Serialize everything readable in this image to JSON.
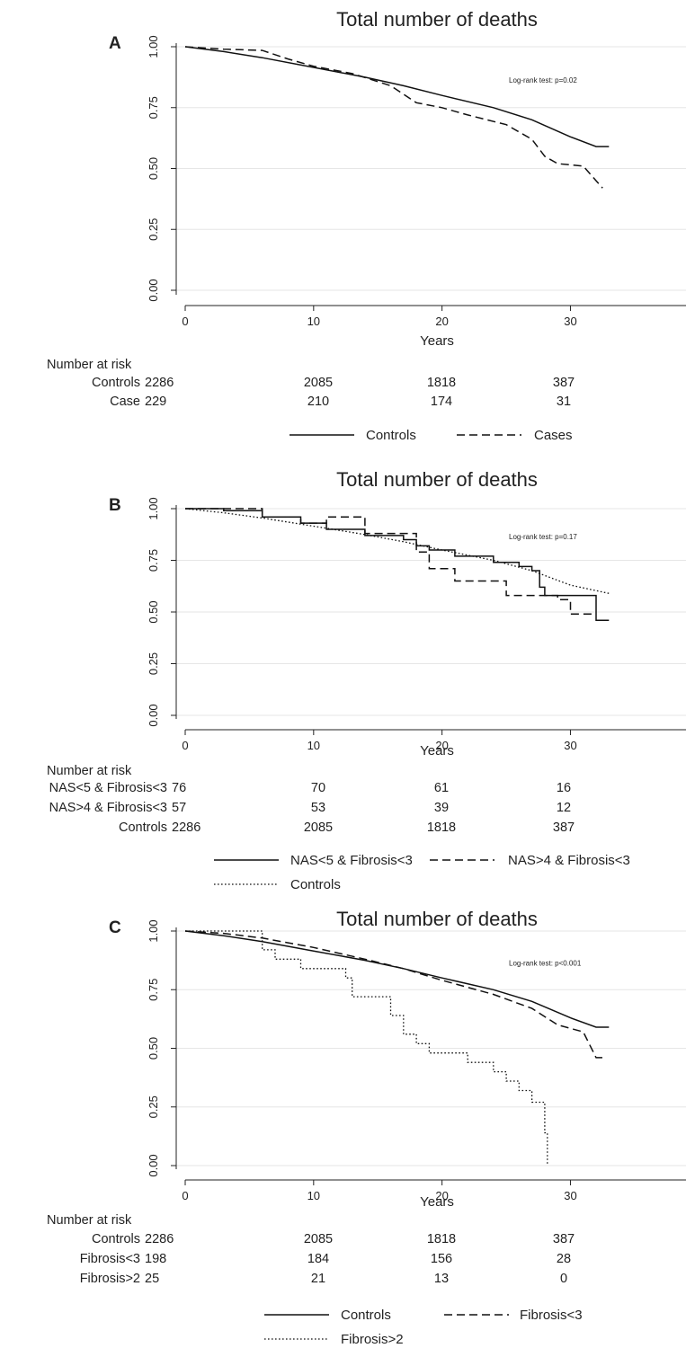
{
  "chart_data": [
    {
      "type": "line",
      "panel": "A",
      "title": "Total number of deaths",
      "xlabel": "Years",
      "xlim": [
        0,
        39
      ],
      "ylim": [
        0,
        1.05
      ],
      "xticks": [
        "0",
        "10",
        "20",
        "30"
      ],
      "yticks": [
        "0.00",
        "0.25",
        "0.50",
        "0.75",
        "1.00"
      ],
      "grid": true,
      "annotation": "Log-rank test: p=0.02",
      "series": [
        {
          "name": "Controls",
          "style": "solid",
          "step": false,
          "x": [
            0,
            3,
            6,
            10,
            14,
            17,
            20,
            24,
            27,
            30,
            32,
            33
          ],
          "y": [
            1.0,
            0.98,
            0.955,
            0.915,
            0.875,
            0.84,
            0.8,
            0.75,
            0.7,
            0.63,
            0.59,
            0.59
          ]
        },
        {
          "name": "Cases",
          "style": "dashed",
          "step": false,
          "x": [
            0,
            3,
            6,
            8,
            10,
            13,
            16,
            18,
            20,
            22,
            25,
            27,
            28,
            29,
            31,
            32,
            32.5
          ],
          "y": [
            1.0,
            0.99,
            0.985,
            0.95,
            0.92,
            0.89,
            0.84,
            0.77,
            0.75,
            0.72,
            0.68,
            0.62,
            0.55,
            0.52,
            0.51,
            0.45,
            0.42
          ]
        }
      ],
      "risk_table": {
        "title": "Number at risk",
        "rows": [
          {
            "label": "Controls",
            "values": [
              "2286",
              "2085",
              "1818",
              "387"
            ]
          },
          {
            "label": "Case",
            "values": [
              "229",
              "210",
              "174",
              "31"
            ]
          }
        ]
      },
      "legend": [
        "Controls",
        "Cases"
      ]
    },
    {
      "type": "line",
      "panel": "B",
      "title": "Total number of deaths",
      "xlabel": "Years",
      "xlim": [
        0,
        39
      ],
      "ylim": [
        0,
        1.05
      ],
      "xticks": [
        "0",
        "10",
        "20",
        "30"
      ],
      "yticks": [
        "0.00",
        "0.25",
        "0.50",
        "0.75",
        "1.00"
      ],
      "grid": true,
      "annotation": "Log-rank test: p=0.17",
      "series": [
        {
          "name": "NAS<5 & Fibrosis<3",
          "style": "solid",
          "step": true,
          "x": [
            0,
            3,
            6,
            9,
            11,
            14,
            17,
            18,
            19,
            21,
            24,
            26,
            27,
            27.6,
            28,
            31.5,
            32,
            33
          ],
          "y": [
            1.0,
            0.99,
            0.96,
            0.93,
            0.9,
            0.87,
            0.85,
            0.82,
            0.8,
            0.77,
            0.74,
            0.72,
            0.7,
            0.62,
            0.58,
            0.58,
            0.46,
            0.46
          ]
        },
        {
          "name": "NAS>4 & Fibrosis<3",
          "style": "dashed",
          "step": true,
          "x": [
            0,
            6,
            9,
            11,
            14,
            18,
            19,
            21,
            24,
            25,
            27,
            29,
            30,
            31,
            32
          ],
          "y": [
            1.0,
            0.96,
            0.93,
            0.96,
            0.88,
            0.79,
            0.71,
            0.65,
            0.65,
            0.58,
            0.58,
            0.56,
            0.49,
            0.49,
            0.49
          ]
        },
        {
          "name": "Controls",
          "style": "dotted",
          "step": false,
          "x": [
            0,
            3,
            6,
            10,
            14,
            17,
            20,
            24,
            27,
            30,
            33
          ],
          "y": [
            1.0,
            0.98,
            0.955,
            0.915,
            0.875,
            0.84,
            0.8,
            0.75,
            0.7,
            0.63,
            0.59
          ]
        }
      ],
      "risk_table": {
        "title": "Number at risk",
        "rows": [
          {
            "label": "NAS<5 & Fibrosis<3",
            "values": [
              "76",
              "70",
              "61",
              "16"
            ]
          },
          {
            "label": "NAS>4 & Fibrosis<3",
            "values": [
              "57",
              "53",
              "39",
              "12"
            ]
          },
          {
            "label": "Controls",
            "values": [
              "2286",
              "2085",
              "1818",
              "387"
            ]
          }
        ]
      },
      "legend": [
        "NAS<5 & Fibrosis<3",
        "NAS>4 & Fibrosis<3",
        "Controls"
      ]
    },
    {
      "type": "line",
      "panel": "C",
      "title": "Total number of deaths",
      "xlabel": "Years",
      "xlim": [
        0,
        39
      ],
      "ylim": [
        0,
        1.05
      ],
      "xticks": [
        "0",
        "10",
        "20",
        "30"
      ],
      "yticks": [
        "0.00",
        "0.25",
        "0.50",
        "0.75",
        "1.00"
      ],
      "grid": true,
      "annotation": "Log-rank test: p<0.001",
      "series": [
        {
          "name": "Controls",
          "style": "solid",
          "step": false,
          "x": [
            0,
            3,
            6,
            10,
            14,
            17,
            20,
            24,
            27,
            30,
            32,
            33
          ],
          "y": [
            1.0,
            0.98,
            0.955,
            0.915,
            0.875,
            0.84,
            0.8,
            0.75,
            0.7,
            0.63,
            0.59,
            0.59
          ]
        },
        {
          "name": "Fibrosis<3",
          "style": "dashed",
          "step": false,
          "x": [
            0,
            3,
            6,
            10,
            14,
            17,
            20,
            24,
            27,
            29,
            31,
            32,
            32.5
          ],
          "y": [
            1.0,
            0.99,
            0.97,
            0.93,
            0.88,
            0.84,
            0.79,
            0.73,
            0.67,
            0.6,
            0.57,
            0.46,
            0.46
          ]
        },
        {
          "name": "Fibrosis>2",
          "style": "dotted",
          "step": true,
          "x": [
            0,
            6,
            7,
            9,
            12.5,
            13,
            16,
            17,
            18,
            19,
            20,
            22,
            24,
            25,
            26,
            27,
            28,
            28.2
          ],
          "y": [
            1.0,
            0.92,
            0.88,
            0.84,
            0.8,
            0.72,
            0.64,
            0.56,
            0.52,
            0.48,
            0.48,
            0.44,
            0.4,
            0.36,
            0.32,
            0.27,
            0.14,
            0.0
          ]
        }
      ],
      "risk_table": {
        "title": "Number at risk",
        "rows": [
          {
            "label": "Controls",
            "values": [
              "2286",
              "2085",
              "1818",
              "387"
            ]
          },
          {
            "label": "Fibrosis<3",
            "values": [
              "198",
              "184",
              "156",
              "28"
            ]
          },
          {
            "label": "Fibrosis>2",
            "values": [
              "25",
              "21",
              "13",
              "0"
            ]
          }
        ]
      },
      "legend": [
        "Controls",
        "Fibrosis<3",
        "Fibrosis>2"
      ]
    }
  ]
}
